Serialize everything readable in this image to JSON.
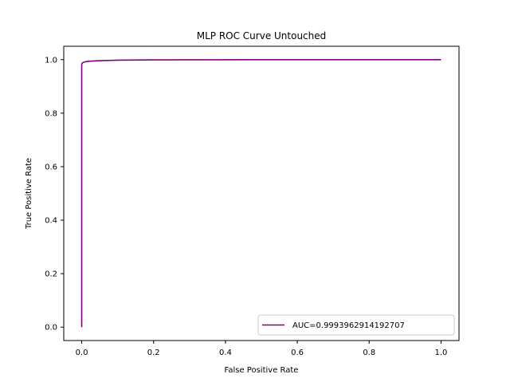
{
  "chart_data": {
    "type": "line",
    "title": "MLP ROC Curve Untouched",
    "xlabel": "False Positive Rate",
    "ylabel": "True Positive Rate",
    "xlim": [
      -0.05,
      1.05
    ],
    "ylim": [
      -0.05,
      1.05
    ],
    "xticks": [
      0.0,
      0.2,
      0.4,
      0.6,
      0.8,
      1.0
    ],
    "yticks": [
      0.0,
      0.2,
      0.4,
      0.6,
      0.8,
      1.0
    ],
    "xtick_labels": [
      "0.0",
      "0.2",
      "0.4",
      "0.6",
      "0.8",
      "1.0"
    ],
    "ytick_labels": [
      "0.0",
      "0.2",
      "0.4",
      "0.6",
      "0.8",
      "1.0"
    ],
    "grid": false,
    "legend_position": "lower-right",
    "series": [
      {
        "name": "AUC=0.9993962914192707",
        "color": "#800080",
        "x": [
          0.0,
          0.0,
          0.0005,
          0.002,
          0.005,
          0.01,
          0.02,
          0.05,
          0.1,
          0.2,
          0.5,
          1.0
        ],
        "y": [
          0.0,
          0.98,
          0.985,
          0.988,
          0.99,
          0.992,
          0.994,
          0.996,
          0.998,
          0.999,
          1.0,
          1.0
        ]
      }
    ]
  }
}
